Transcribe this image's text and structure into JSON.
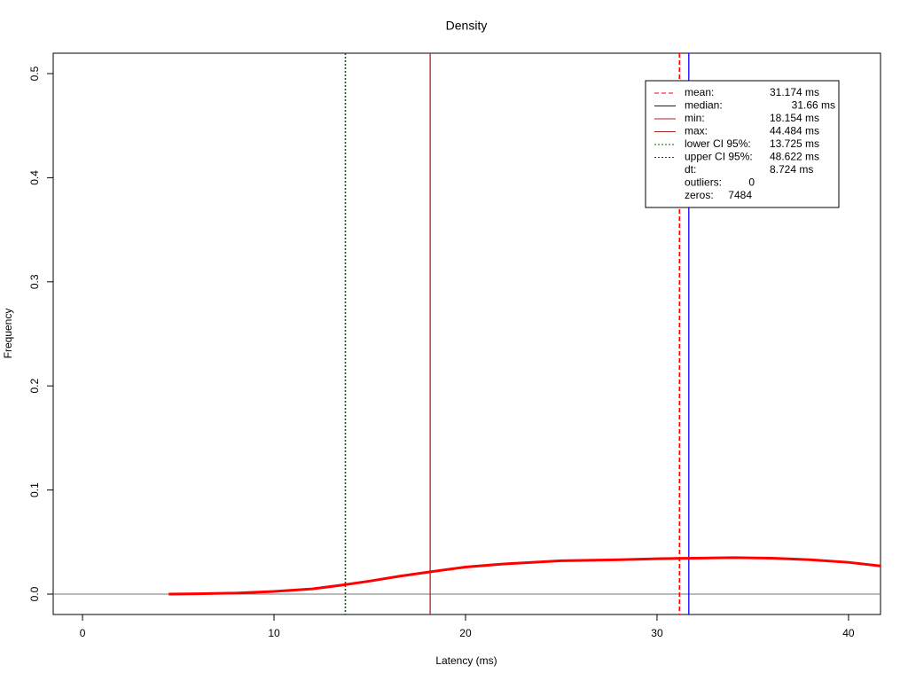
{
  "chart_data": {
    "type": "density",
    "title": "Density",
    "x_label": "Latency (ms)",
    "y_label": "Frequency",
    "xlim": [
      -1.53,
      41.67
    ],
    "ylim": [
      -0.0196,
      0.5196
    ],
    "xticks": [
      0,
      10,
      20,
      30,
      40
    ],
    "yticks": [
      {
        "value": 0,
        "label": "0.0"
      },
      0.1,
      0.2,
      0.3,
      0.4,
      0.5
    ],
    "series": [
      {
        "name": "density",
        "color": "#ff0000",
        "x": [
          4.5,
          6,
          8,
          10,
          12,
          13.7,
          15,
          16.5,
          18.2,
          20,
          22,
          25,
          28,
          30,
          32,
          34,
          36,
          38,
          40,
          41.67
        ],
        "values": [
          0,
          0.0003,
          0.001,
          0.0025,
          0.005,
          0.009,
          0.0125,
          0.017,
          0.0215,
          0.026,
          0.029,
          0.032,
          0.033,
          0.034,
          0.0345,
          0.035,
          0.0345,
          0.033,
          0.0305,
          0.027
        ]
      }
    ],
    "markers": {
      "names": [
        "mean:",
        "median:",
        "min:",
        "max:",
        "lower CI 95%:",
        "upper CI 95%:"
      ],
      "values": [
        31.174,
        31.66,
        18.154,
        44.484,
        13.725,
        48.622
      ],
      "value_labels": [
        "31.174 ms",
        "31.66 ms",
        "18.154 ms",
        "44.484 ms",
        "13.725 ms",
        "48.622 ms"
      ],
      "colors": [
        "#ff0000",
        "#0000ff",
        "#b22222",
        "#a52a2a",
        "#006400",
        "#006400"
      ],
      "dashes": [
        "5,3",
        "none",
        "none",
        "none",
        "2,2",
        "2,2"
      ]
    },
    "stats": [
      {
        "name": "dt:",
        "text": "8.724 ms"
      },
      {
        "name": "outliers:",
        "text": "0"
      },
      {
        "name": "zeros:",
        "text": "7484"
      }
    ]
  }
}
